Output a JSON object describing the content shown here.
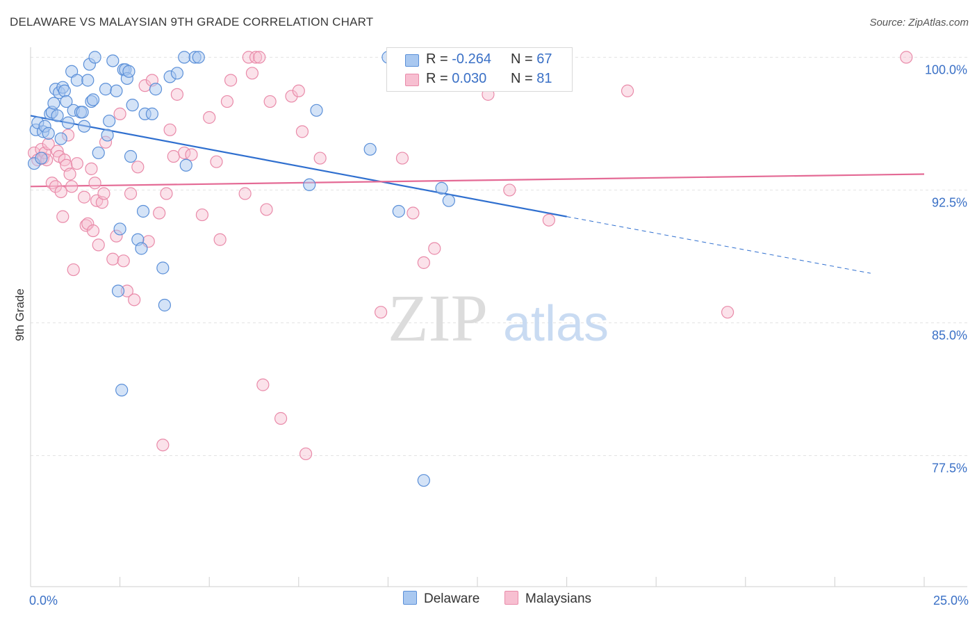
{
  "title": "DELAWARE VS MALAYSIAN 9TH GRADE CORRELATION CHART",
  "source": "Source: ZipAtlas.com",
  "watermark": {
    "zip": "ZIP",
    "atlas": "atlas"
  },
  "colors": {
    "delaware_fill": "#a9c8f0",
    "delaware_stroke": "#5a8fd8",
    "delaware_line": "#2f6fcf",
    "malaysian_fill": "#f7bfd1",
    "malaysian_stroke": "#e98aa9",
    "malaysian_line": "#e46a95",
    "axis_label": "#3a70c6"
  },
  "legend": {
    "rows": [
      {
        "r_label": "R =",
        "r_value": "-0.264",
        "n_label": "N =",
        "n_value": "67"
      },
      {
        "r_label": "R =",
        "r_value": "0.030",
        "n_label": "N =",
        "n_value": "81"
      }
    ],
    "bottom": [
      "Delaware",
      "Malaysians"
    ]
  },
  "chart_data": {
    "type": "scatter",
    "title": "DELAWARE VS MALAYSIAN 9TH GRADE CORRELATION CHART",
    "xlabel": "",
    "ylabel": "9th Grade",
    "xlim": [
      0,
      25
    ],
    "ylim": [
      70.1,
      100.8
    ],
    "x_tick_labels": [
      "0.0%",
      "25.0%"
    ],
    "y_ticks": [
      100,
      92.5,
      85,
      77.5
    ],
    "y_tick_labels": [
      "100.0%",
      "92.5%",
      "85.0%",
      "77.5%"
    ],
    "grid": "horizontal dashed",
    "legend_position": "top-center",
    "series": [
      {
        "name": "Delaware",
        "R": -0.264,
        "N": 67,
        "trend": {
          "x0": 0,
          "y0": 96.7,
          "x1": 15,
          "y1": 91.0,
          "dashed_to_x": 23.5,
          "dashed_to_y": 87.8
        },
        "points": [
          [
            0.1,
            94
          ],
          [
            0.15,
            95.9
          ],
          [
            0.2,
            96.3
          ],
          [
            0.3,
            94.3
          ],
          [
            0.35,
            95.8
          ],
          [
            0.4,
            96.1
          ],
          [
            0.5,
            95.7
          ],
          [
            0.55,
            96.8
          ],
          [
            0.6,
            96.9
          ],
          [
            0.65,
            97.4
          ],
          [
            0.7,
            98.2
          ],
          [
            0.75,
            96.7
          ],
          [
            0.8,
            98
          ],
          [
            0.85,
            95.4
          ],
          [
            0.9,
            98.3
          ],
          [
            0.95,
            98.1
          ],
          [
            1.0,
            97.5
          ],
          [
            1.05,
            96.3
          ],
          [
            1.15,
            99.2
          ],
          [
            1.2,
            97
          ],
          [
            1.3,
            98.7
          ],
          [
            1.4,
            96.9
          ],
          [
            1.45,
            96.9
          ],
          [
            1.5,
            96.1
          ],
          [
            1.6,
            98.7
          ],
          [
            1.65,
            99.6
          ],
          [
            1.7,
            97.5
          ],
          [
            1.75,
            97.6
          ],
          [
            1.8,
            100
          ],
          [
            1.9,
            94.6
          ],
          [
            2.1,
            98.2
          ],
          [
            2.15,
            95.6
          ],
          [
            2.2,
            96.4
          ],
          [
            2.3,
            99.8
          ],
          [
            2.4,
            98.1
          ],
          [
            2.45,
            86.8
          ],
          [
            2.5,
            90.3
          ],
          [
            2.55,
            81.2
          ],
          [
            2.6,
            99.3
          ],
          [
            2.65,
            99.3
          ],
          [
            2.7,
            98.8
          ],
          [
            2.75,
            99.2
          ],
          [
            2.8,
            94.4
          ],
          [
            2.85,
            97.3
          ],
          [
            3.0,
            89.7
          ],
          [
            3.1,
            89.2
          ],
          [
            3.15,
            91.3
          ],
          [
            3.2,
            96.8
          ],
          [
            3.5,
            98.2
          ],
          [
            3.7,
            88.1
          ],
          [
            3.75,
            86
          ],
          [
            3.9,
            98.9
          ],
          [
            4.1,
            99.1
          ],
          [
            4.3,
            100
          ],
          [
            4.35,
            93.9
          ],
          [
            4.6,
            100
          ],
          [
            7.8,
            92.8
          ],
          [
            8.0,
            97
          ],
          [
            9.5,
            94.8
          ],
          [
            10,
            100
          ],
          [
            10.3,
            91.3
          ],
          [
            11.0,
            76.1
          ],
          [
            11.2,
            100
          ],
          [
            11.5,
            92.6
          ],
          [
            11.7,
            91.9
          ],
          [
            4.7,
            100
          ],
          [
            3.4,
            96.8
          ]
        ]
      },
      {
        "name": "Malaysians",
        "R": 0.03,
        "N": 81,
        "trend": {
          "x0": 0,
          "y0": 92.7,
          "x1": 25,
          "y1": 93.4
        },
        "points": [
          [
            0.1,
            94.6
          ],
          [
            0.2,
            94.2
          ],
          [
            0.3,
            94.8
          ],
          [
            0.35,
            94.3
          ],
          [
            0.4,
            94.6
          ],
          [
            0.45,
            94.2
          ],
          [
            0.5,
            95.1
          ],
          [
            0.6,
            92.9
          ],
          [
            0.7,
            92.7
          ],
          [
            0.75,
            94.7
          ],
          [
            0.8,
            94.4
          ],
          [
            0.85,
            92.4
          ],
          [
            0.9,
            91
          ],
          [
            0.95,
            94.2
          ],
          [
            1.0,
            93.9
          ],
          [
            1.05,
            95.6
          ],
          [
            1.1,
            93.4
          ],
          [
            1.15,
            92.7
          ],
          [
            1.2,
            88
          ],
          [
            1.3,
            94
          ],
          [
            1.5,
            92.1
          ],
          [
            1.55,
            90.5
          ],
          [
            1.6,
            90.6
          ],
          [
            1.7,
            93.7
          ],
          [
            1.75,
            90.2
          ],
          [
            1.8,
            92.9
          ],
          [
            1.85,
            91.9
          ],
          [
            1.9,
            89.4
          ],
          [
            2.0,
            91.8
          ],
          [
            2.05,
            92.3
          ],
          [
            2.1,
            95.2
          ],
          [
            2.3,
            88.6
          ],
          [
            2.4,
            89.9
          ],
          [
            2.5,
            96.8
          ],
          [
            2.6,
            88.5
          ],
          [
            2.7,
            86.8
          ],
          [
            2.8,
            92.3
          ],
          [
            2.9,
            86.3
          ],
          [
            3.0,
            93.8
          ],
          [
            3.2,
            98.4
          ],
          [
            3.3,
            89.6
          ],
          [
            3.4,
            98.7
          ],
          [
            3.6,
            91.2
          ],
          [
            3.7,
            78.1
          ],
          [
            3.8,
            92.3
          ],
          [
            3.9,
            95.9
          ],
          [
            4.0,
            94.4
          ],
          [
            4.1,
            97.9
          ],
          [
            4.3,
            94.6
          ],
          [
            4.5,
            94.5
          ],
          [
            4.8,
            91.1
          ],
          [
            5.0,
            96.6
          ],
          [
            5.2,
            94.1
          ],
          [
            5.3,
            89.7
          ],
          [
            5.5,
            97.5
          ],
          [
            5.6,
            98.7
          ],
          [
            6.0,
            92.3
          ],
          [
            6.1,
            100
          ],
          [
            6.2,
            99.1
          ],
          [
            6.3,
            100
          ],
          [
            6.4,
            100
          ],
          [
            6.5,
            81.5
          ],
          [
            6.6,
            91.4
          ],
          [
            6.7,
            97.5
          ],
          [
            7.0,
            79.6
          ],
          [
            7.3,
            97.8
          ],
          [
            7.5,
            98.1
          ],
          [
            7.6,
            95.8
          ],
          [
            7.7,
            77.6
          ],
          [
            8.1,
            94.3
          ],
          [
            9.8,
            85.6
          ],
          [
            10.4,
            94.3
          ],
          [
            10.7,
            91.2
          ],
          [
            11.0,
            88.4
          ],
          [
            11.3,
            89.2
          ],
          [
            12.8,
            97.9
          ],
          [
            13.4,
            92.5
          ],
          [
            14.5,
            90.8
          ],
          [
            16.7,
            98.1
          ],
          [
            19.5,
            85.6
          ],
          [
            24.5,
            100
          ]
        ]
      }
    ]
  }
}
